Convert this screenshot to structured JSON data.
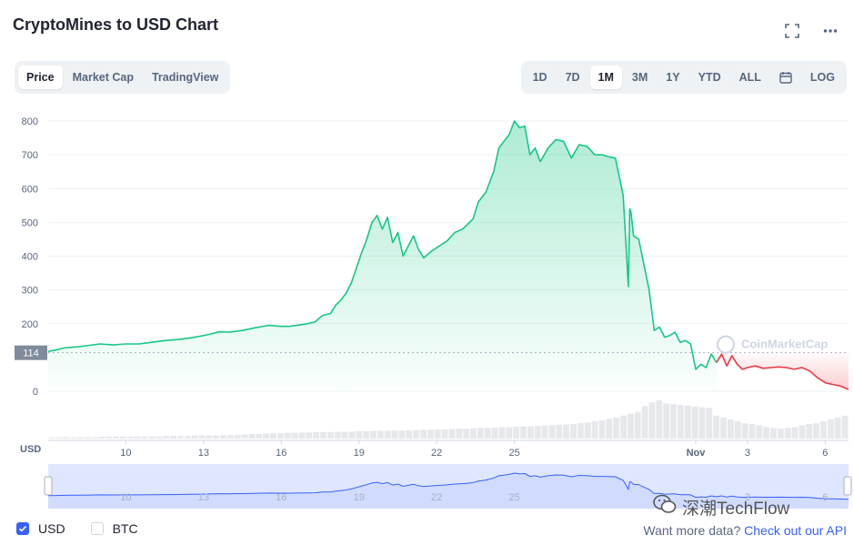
{
  "title": "CryptoMines to USD Chart",
  "top_icons": [
    "fullscreen-icon",
    "more-icon"
  ],
  "view_tabs": [
    {
      "label": "Price",
      "active": true
    },
    {
      "label": "Market Cap",
      "active": false
    },
    {
      "label": "TradingView",
      "active": false
    }
  ],
  "range_tabs": [
    {
      "label": "1D",
      "active": false
    },
    {
      "label": "7D",
      "active": false
    },
    {
      "label": "1M",
      "active": true
    },
    {
      "label": "3M",
      "active": false
    },
    {
      "label": "1Y",
      "active": false
    },
    {
      "label": "YTD",
      "active": false
    },
    {
      "label": "ALL",
      "active": false
    }
  ],
  "calendar_icon": "calendar-icon",
  "log_label": "LOG",
  "chart_data": {
    "type": "area",
    "ylim": [
      0,
      800
    ],
    "y_ticks": [
      "800",
      "700",
      "600",
      "500",
      "400",
      "300",
      "200",
      "0"
    ],
    "y_tick_values": [
      800,
      700,
      600,
      500,
      400,
      300,
      200,
      0
    ],
    "x_ticks": [
      "10",
      "13",
      "16",
      "19",
      "22",
      "25",
      "Nov",
      "3",
      "6"
    ],
    "x_tick_values": [
      10,
      13,
      16,
      19,
      22,
      25,
      32,
      34,
      37
    ],
    "xlim": [
      7,
      37.9
    ],
    "x_axis_label": "USD",
    "reference_value": 114,
    "reference_label": "114",
    "colors": {
      "up": "#16c784",
      "down": "#ea3943",
      "navigator": "#3861fb"
    },
    "watermark": "CoinMarketCap",
    "series": [
      {
        "x": [
          7.0,
          7.3,
          7.6,
          7.9,
          8.2,
          8.6,
          9.0,
          9.5,
          10.0,
          10.5,
          11.0,
          11.5,
          12.0,
          12.5,
          12.8,
          13.2,
          13.6,
          14.0,
          14.5,
          15.0,
          15.5,
          16.0,
          16.3,
          16.6,
          17.0,
          17.3,
          17.6,
          17.9,
          18.1,
          18.3,
          18.5,
          18.7,
          18.9,
          19.1,
          19.3,
          19.5,
          19.7,
          19.9,
          20.1,
          20.3,
          20.5,
          20.7,
          20.9,
          21.1,
          21.3,
          21.5,
          21.8,
          22.1,
          22.4,
          22.7,
          23.0,
          23.2,
          23.4,
          23.6,
          23.9,
          24.2,
          24.4,
          24.6,
          24.8,
          25.0,
          25.2,
          25.4,
          25.6,
          25.8,
          26.0,
          26.3,
          26.6,
          26.9,
          27.2,
          27.5,
          27.8,
          28.1,
          28.4,
          28.6,
          28.9,
          29.2,
          29.4,
          29.45,
          29.5,
          29.6,
          29.8,
          30.0,
          30.2,
          30.4,
          30.6,
          30.8,
          31.0,
          31.2,
          31.4,
          31.6,
          31.8,
          32.0,
          32.2,
          32.4,
          32.6,
          32.8
        ],
        "y": [
          118,
          122,
          128,
          130,
          132,
          136,
          140,
          137,
          140,
          140,
          145,
          150,
          153,
          158,
          162,
          168,
          176,
          175,
          180,
          188,
          195,
          192,
          192,
          195,
          200,
          205,
          225,
          230,
          255,
          270,
          290,
          320,
          365,
          410,
          450,
          500,
          520,
          480,
          515,
          440,
          470,
          400,
          430,
          460,
          420,
          395,
          415,
          430,
          445,
          470,
          480,
          495,
          510,
          560,
          590,
          650,
          720,
          740,
          760,
          800,
          780,
          785,
          700,
          720,
          680,
          720,
          745,
          740,
          690,
          730,
          725,
          700,
          700,
          695,
          690,
          580,
          310,
          540,
          530,
          460,
          450,
          375,
          300,
          180,
          190,
          160,
          165,
          175,
          145,
          150,
          140,
          65,
          80,
          70,
          110,
          85
        ],
        "color": "#16c784"
      },
      {
        "x": [
          32.8,
          33.0,
          33.2,
          33.4,
          33.6,
          33.8,
          34.0,
          34.3,
          34.6,
          34.9,
          35.2,
          35.5,
          35.8,
          36.1,
          36.4,
          36.7,
          37.0,
          37.3,
          37.6,
          37.9
        ],
        "y": [
          85,
          110,
          75,
          105,
          80,
          65,
          70,
          75,
          68,
          70,
          72,
          70,
          65,
          70,
          60,
          40,
          25,
          20,
          15,
          5
        ],
        "color": "#ea3943"
      }
    ],
    "volume": [
      3,
      3,
      4,
      3,
      4,
      4,
      4,
      5,
      5,
      5,
      5,
      5,
      6,
      6,
      6,
      6,
      7,
      7,
      7,
      7,
      8,
      8,
      8,
      8,
      9,
      9,
      10,
      11,
      12,
      12,
      13,
      14,
      14,
      15,
      15,
      16,
      16,
      17,
      17,
      17,
      18,
      18,
      18,
      19,
      19,
      20,
      20,
      20,
      21,
      21,
      22,
      22,
      23,
      23,
      24,
      24,
      25,
      26,
      26,
      27,
      28,
      28,
      29,
      30,
      30,
      31,
      32,
      32,
      33,
      34,
      35,
      36,
      37,
      38,
      40,
      42,
      45,
      48,
      52,
      55,
      60,
      65,
      70,
      85,
      95,
      100,
      92,
      90,
      88,
      86,
      84,
      82,
      80,
      60,
      55,
      50,
      45,
      40,
      38,
      35,
      30,
      28,
      26,
      28,
      30,
      35,
      38,
      40,
      45,
      50,
      55,
      60
    ]
  },
  "navigator": {
    "x_ticks": [
      "10",
      "13",
      "16",
      "19",
      "22",
      "25",
      "3",
      "6"
    ]
  },
  "footer": {
    "usd_label": "USD",
    "btc_label": "BTC",
    "usd_checked": true,
    "btc_checked": false,
    "api_text": "Want more data?",
    "api_link": "Check out our API"
  },
  "watermark_wechat": "深潮TechFlow"
}
